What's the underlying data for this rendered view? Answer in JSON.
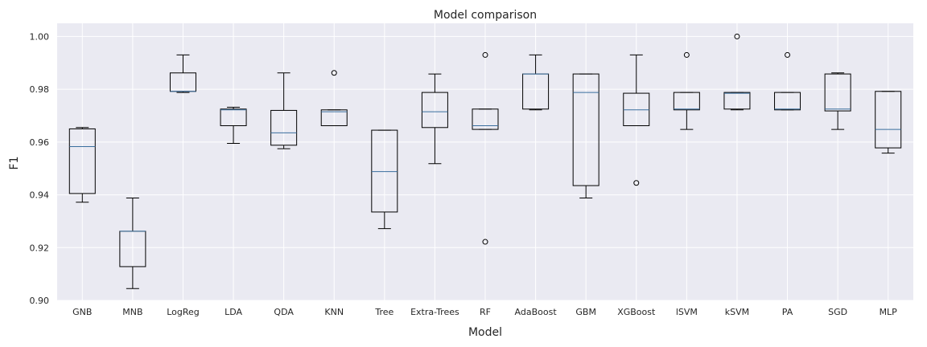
{
  "chart_data": {
    "type": "boxplot",
    "title": "Model comparison",
    "xlabel": "Model",
    "ylabel": "F1",
    "ylim": [
      0.9,
      1.005
    ],
    "yticks": [
      0.9,
      0.92,
      0.94,
      0.96,
      0.98,
      1.0
    ],
    "ytick_labels": [
      "0.90",
      "0.92",
      "0.94",
      "0.96",
      "0.98",
      "1.00"
    ],
    "grid": true,
    "background": "#eaeaf2",
    "median_color": "#3a6f9e",
    "categories": [
      "GNB",
      "MNB",
      "LogReg",
      "LDA",
      "QDA",
      "KNN",
      "Tree",
      "Extra-Trees",
      "RF",
      "AdaBoost",
      "GBM",
      "XGBoost",
      "lSVM",
      "kSVM",
      "PA",
      "SGD",
      "MLP"
    ],
    "boxes": [
      {
        "name": "GNB",
        "whislo": 0.9372,
        "q1": 0.9405,
        "med": 0.9583,
        "q3": 0.965,
        "whishi": 0.9655,
        "fliers": []
      },
      {
        "name": "MNB",
        "whislo": 0.9045,
        "q1": 0.9128,
        "med": 0.9262,
        "q3": 0.9262,
        "whishi": 0.9388,
        "fliers": []
      },
      {
        "name": "LogReg",
        "whislo": 0.9788,
        "q1": 0.9792,
        "med": 0.9792,
        "q3": 0.9862,
        "whishi": 0.993,
        "fliers": []
      },
      {
        "name": "LDA",
        "whislo": 0.9595,
        "q1": 0.9662,
        "med": 0.9722,
        "q3": 0.9725,
        "whishi": 0.9732,
        "fliers": []
      },
      {
        "name": "QDA",
        "whislo": 0.9575,
        "q1": 0.9588,
        "med": 0.9635,
        "q3": 0.972,
        "whishi": 0.9862,
        "fliers": []
      },
      {
        "name": "KNN",
        "whislo": 0.9662,
        "q1": 0.9662,
        "med": 0.9715,
        "q3": 0.9722,
        "whishi": 0.9722,
        "fliers": [
          0.9862
        ]
      },
      {
        "name": "Tree",
        "whislo": 0.9272,
        "q1": 0.9335,
        "med": 0.9488,
        "q3": 0.9645,
        "whishi": 0.9645,
        "fliers": []
      },
      {
        "name": "Extra-Trees",
        "whislo": 0.9518,
        "q1": 0.9655,
        "med": 0.9715,
        "q3": 0.9788,
        "whishi": 0.9858,
        "fliers": []
      },
      {
        "name": "RF",
        "whislo": 0.9648,
        "q1": 0.9648,
        "med": 0.9662,
        "q3": 0.9725,
        "whishi": 0.9725,
        "fliers": [
          0.993,
          0.9222
        ]
      },
      {
        "name": "AdaBoost",
        "whislo": 0.9722,
        "q1": 0.9725,
        "med": 0.9858,
        "q3": 0.9858,
        "whishi": 0.993,
        "fliers": []
      },
      {
        "name": "GBM",
        "whislo": 0.9388,
        "q1": 0.9435,
        "med": 0.9788,
        "q3": 0.9858,
        "whishi": 0.9858,
        "fliers": []
      },
      {
        "name": "XGBoost",
        "whislo": 0.9662,
        "q1": 0.9662,
        "med": 0.9722,
        "q3": 0.9785,
        "whishi": 0.993,
        "fliers": [
          0.9445
        ]
      },
      {
        "name": "lSVM",
        "whislo": 0.9648,
        "q1": 0.9722,
        "med": 0.9725,
        "q3": 0.9788,
        "whishi": 0.9788,
        "fliers": [
          0.993
        ]
      },
      {
        "name": "kSVM",
        "whislo": 0.9722,
        "q1": 0.9725,
        "med": 0.9785,
        "q3": 0.9788,
        "whishi": 0.9788,
        "fliers": [
          1.0
        ]
      },
      {
        "name": "PA",
        "whislo": 0.9722,
        "q1": 0.9722,
        "med": 0.9725,
        "q3": 0.9788,
        "whishi": 0.9788,
        "fliers": [
          0.993
        ]
      },
      {
        "name": "SGD",
        "whislo": 0.9648,
        "q1": 0.9718,
        "med": 0.9725,
        "q3": 0.9858,
        "whishi": 0.9862,
        "fliers": []
      },
      {
        "name": "MLP",
        "whislo": 0.9558,
        "q1": 0.9578,
        "med": 0.9648,
        "q3": 0.9792,
        "whishi": 0.9792,
        "fliers": []
      }
    ]
  }
}
